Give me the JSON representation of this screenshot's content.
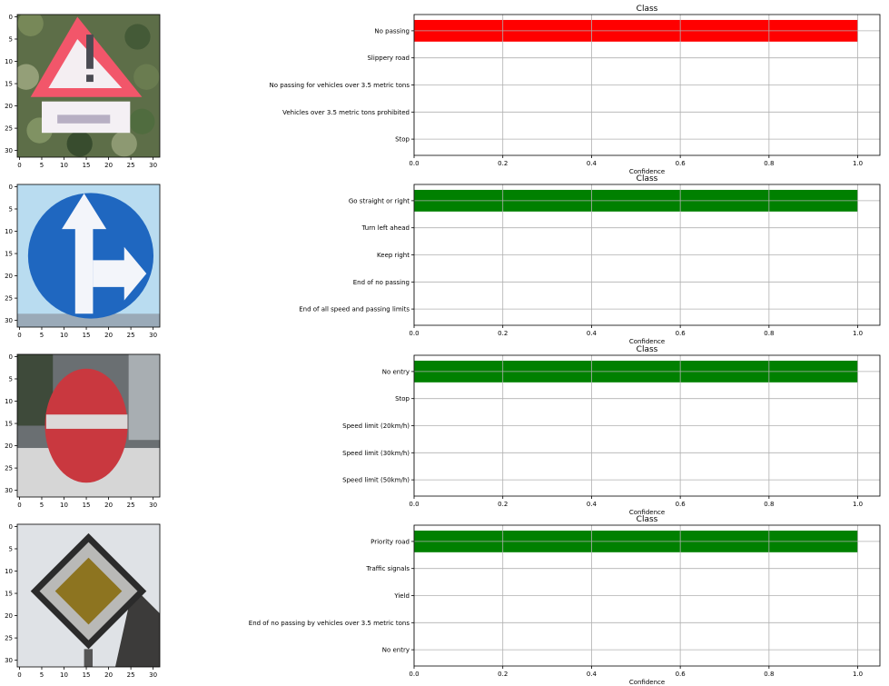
{
  "colors": {
    "red": "#ff0000",
    "green": "#008000",
    "grid": "#b0b0b0",
    "axis": "#000000"
  },
  "chart_data": [
    {
      "type": "bar",
      "orientation": "horizontal",
      "title": "Class",
      "xlabel": "Confidence",
      "xlim": [
        0,
        1.05
      ],
      "xticks": [
        "0.0",
        "0.2",
        "0.4",
        "0.6",
        "0.8",
        "1.0"
      ],
      "grid": true,
      "bar_color": "red",
      "categories": [
        "No passing",
        "Slippery road",
        "No passing for vehicles over 3.5 metric tons",
        "Vehicles over 3.5 metric tons prohibited",
        "Stop"
      ],
      "values": [
        1.0,
        0.0,
        0.0,
        0.0,
        0.0
      ],
      "image": {
        "kind": "warning",
        "axis_ticks": [
          "0",
          "5",
          "10",
          "15",
          "20",
          "25",
          "30"
        ]
      }
    },
    {
      "type": "bar",
      "orientation": "horizontal",
      "title": "Class",
      "xlabel": "Confidence",
      "xlim": [
        0,
        1.05
      ],
      "xticks": [
        "0.0",
        "0.2",
        "0.4",
        "0.6",
        "0.8",
        "1.0"
      ],
      "grid": true,
      "bar_color": "green",
      "categories": [
        "Go straight or right",
        "Turn left ahead",
        "Keep right",
        "End of no passing",
        "End of all speed and passing limits"
      ],
      "values": [
        1.0,
        0.0,
        0.0,
        0.0,
        0.0
      ],
      "image": {
        "kind": "straight-right",
        "axis_ticks": [
          "0",
          "5",
          "10",
          "15",
          "20",
          "25",
          "30"
        ]
      }
    },
    {
      "type": "bar",
      "orientation": "horizontal",
      "title": "Class",
      "xlabel": "Confidence",
      "xlim": [
        0,
        1.05
      ],
      "xticks": [
        "0.0",
        "0.2",
        "0.4",
        "0.6",
        "0.8",
        "1.0"
      ],
      "grid": true,
      "bar_color": "green",
      "categories": [
        "No entry",
        "Stop",
        "Speed limit (20km/h)",
        "Speed limit (30km/h)",
        "Speed limit (50km/h)"
      ],
      "values": [
        1.0,
        0.0,
        0.0,
        0.0,
        0.0
      ],
      "image": {
        "kind": "no-entry",
        "axis_ticks": [
          "0",
          "5",
          "10",
          "15",
          "20",
          "25",
          "30"
        ]
      }
    },
    {
      "type": "bar",
      "orientation": "horizontal",
      "title": "Class",
      "xlabel": "Confidence",
      "xlim": [
        0,
        1.05
      ],
      "xticks": [
        "0.0",
        "0.2",
        "0.4",
        "0.6",
        "0.8",
        "1.0"
      ],
      "grid": true,
      "bar_color": "green",
      "categories": [
        "Priority road",
        "Traffic signals",
        "Yield",
        "End of no passing by vehicles over 3.5 metric tons",
        "No entry"
      ],
      "values": [
        1.0,
        0.0,
        0.0,
        0.0,
        0.0
      ],
      "image": {
        "kind": "priority-road",
        "axis_ticks": [
          "0",
          "5",
          "10",
          "15",
          "20",
          "25",
          "30"
        ]
      }
    }
  ]
}
